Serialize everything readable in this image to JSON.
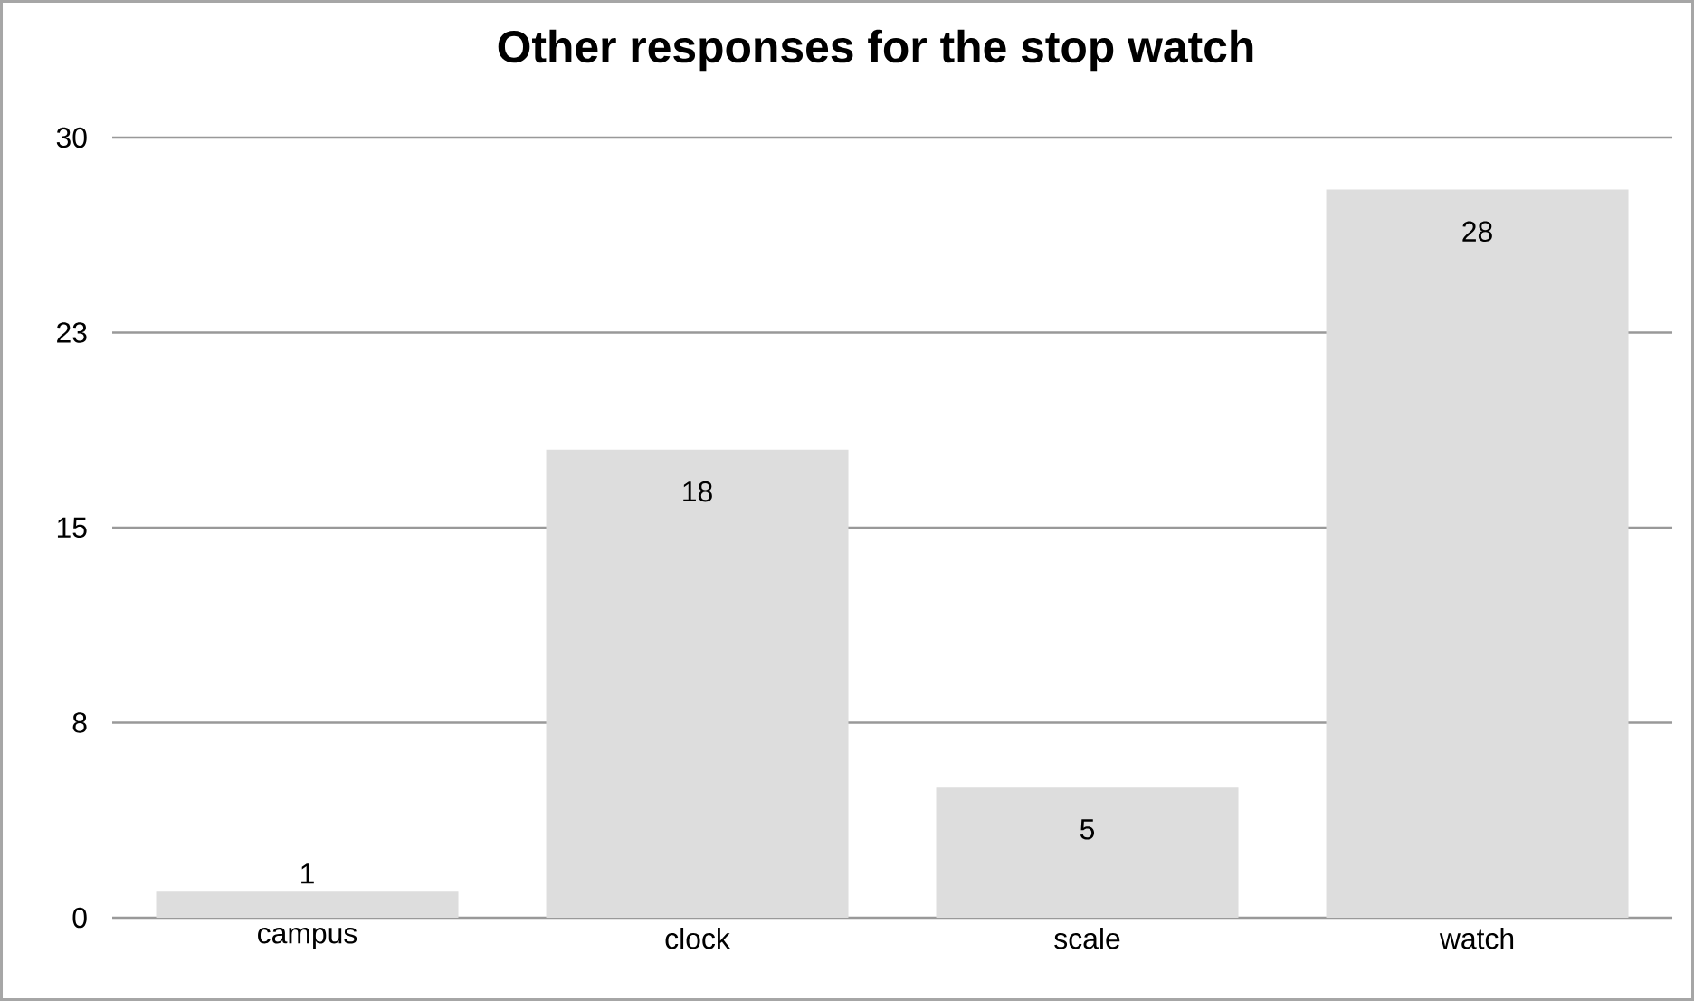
{
  "chart_data": {
    "type": "bar",
    "title": "Other responses for the stop watch",
    "categories": [
      "campus",
      "clock",
      "scale",
      "watch"
    ],
    "values": [
      1,
      18,
      5,
      28
    ],
    "color": "#dddddd",
    "ylim": [
      0,
      30
    ],
    "yticks": [
      0,
      {
        "value": 7.5,
        "label": "8"
      },
      15,
      {
        "value": 22.5,
        "label": "23"
      },
      30
    ],
    "grid": "y",
    "data_labels": true
  }
}
